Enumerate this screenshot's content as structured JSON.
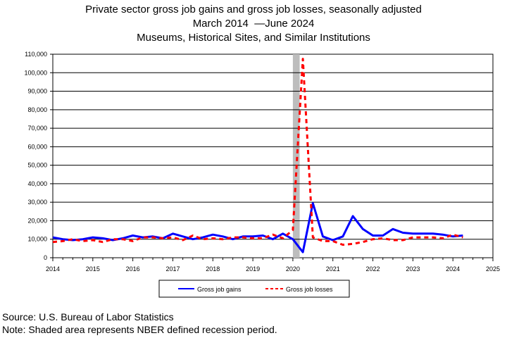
{
  "chart_data": {
    "type": "line",
    "title": "Private sector gross job gains and gross job losses, seasonally adjusted",
    "subtitle_dates": "March 2014  —June 2024",
    "subtitle_industry": "Museums, Historical Sites, and Similar Institutions",
    "xlabel": "",
    "ylabel": "",
    "xlim": [
      2014,
      2025
    ],
    "ylim": [
      0,
      110000
    ],
    "x_ticks": [
      "2014",
      "2015",
      "2016",
      "2017",
      "2018",
      "2019",
      "2020",
      "2021",
      "2022",
      "2023",
      "2024",
      "2025"
    ],
    "y_ticks": [
      "0",
      "10,000",
      "20,000",
      "30,000",
      "40,000",
      "50,000",
      "60,000",
      "70,000",
      "80,000",
      "90,000",
      "100,000",
      "110,000"
    ],
    "grid": true,
    "legend_placement": "bottom-center",
    "recession_band": [
      2020.0,
      2020.17
    ],
    "x": [
      2014.0,
      2014.25,
      2014.5,
      2014.75,
      2015.0,
      2015.25,
      2015.5,
      2015.75,
      2016.0,
      2016.25,
      2016.5,
      2016.75,
      2017.0,
      2017.25,
      2017.5,
      2017.75,
      2018.0,
      2018.25,
      2018.5,
      2018.75,
      2019.0,
      2019.25,
      2019.5,
      2019.75,
      2020.0,
      2020.25,
      2020.5,
      2020.75,
      2021.0,
      2021.25,
      2021.5,
      2021.75,
      2022.0,
      2022.25,
      2022.5,
      2022.75,
      2023.0,
      2023.25,
      2023.5,
      2023.75,
      2024.0,
      2024.25
    ],
    "series": [
      {
        "name": "Gross job gains",
        "color": "#0000ff",
        "style": "solid",
        "values": [
          11000,
          10000,
          9500,
          10000,
          11000,
          10500,
          9500,
          10500,
          12000,
          11000,
          11500,
          10500,
          13000,
          11500,
          10000,
          11000,
          12500,
          11500,
          10000,
          11500,
          11500,
          12000,
          10000,
          13000,
          10000,
          3000,
          29500,
          11500,
          9500,
          11500,
          22500,
          15500,
          12000,
          12000,
          15500,
          13500,
          13000,
          13000,
          13000,
          12500,
          11500,
          12000
        ]
      },
      {
        "name": "Gross job losses",
        "color": "#ff0000",
        "style": "dashed",
        "values": [
          8500,
          9000,
          10000,
          9000,
          9500,
          8500,
          10000,
          10000,
          9000,
          11000,
          11000,
          10500,
          11000,
          9500,
          12000,
          10000,
          10500,
          10000,
          11000,
          11000,
          10500,
          10500,
          12500,
          10500,
          15000,
          107500,
          11000,
          9000,
          9000,
          7000,
          7500,
          8500,
          10000,
          10500,
          9500,
          9500,
          11000,
          11000,
          11000,
          10500,
          12500,
          11000
        ]
      }
    ]
  },
  "footer": {
    "source": "Source: U.S. Bureau of Labor Statistics",
    "note": "Note: Shaded area represents NBER defined recession period."
  }
}
